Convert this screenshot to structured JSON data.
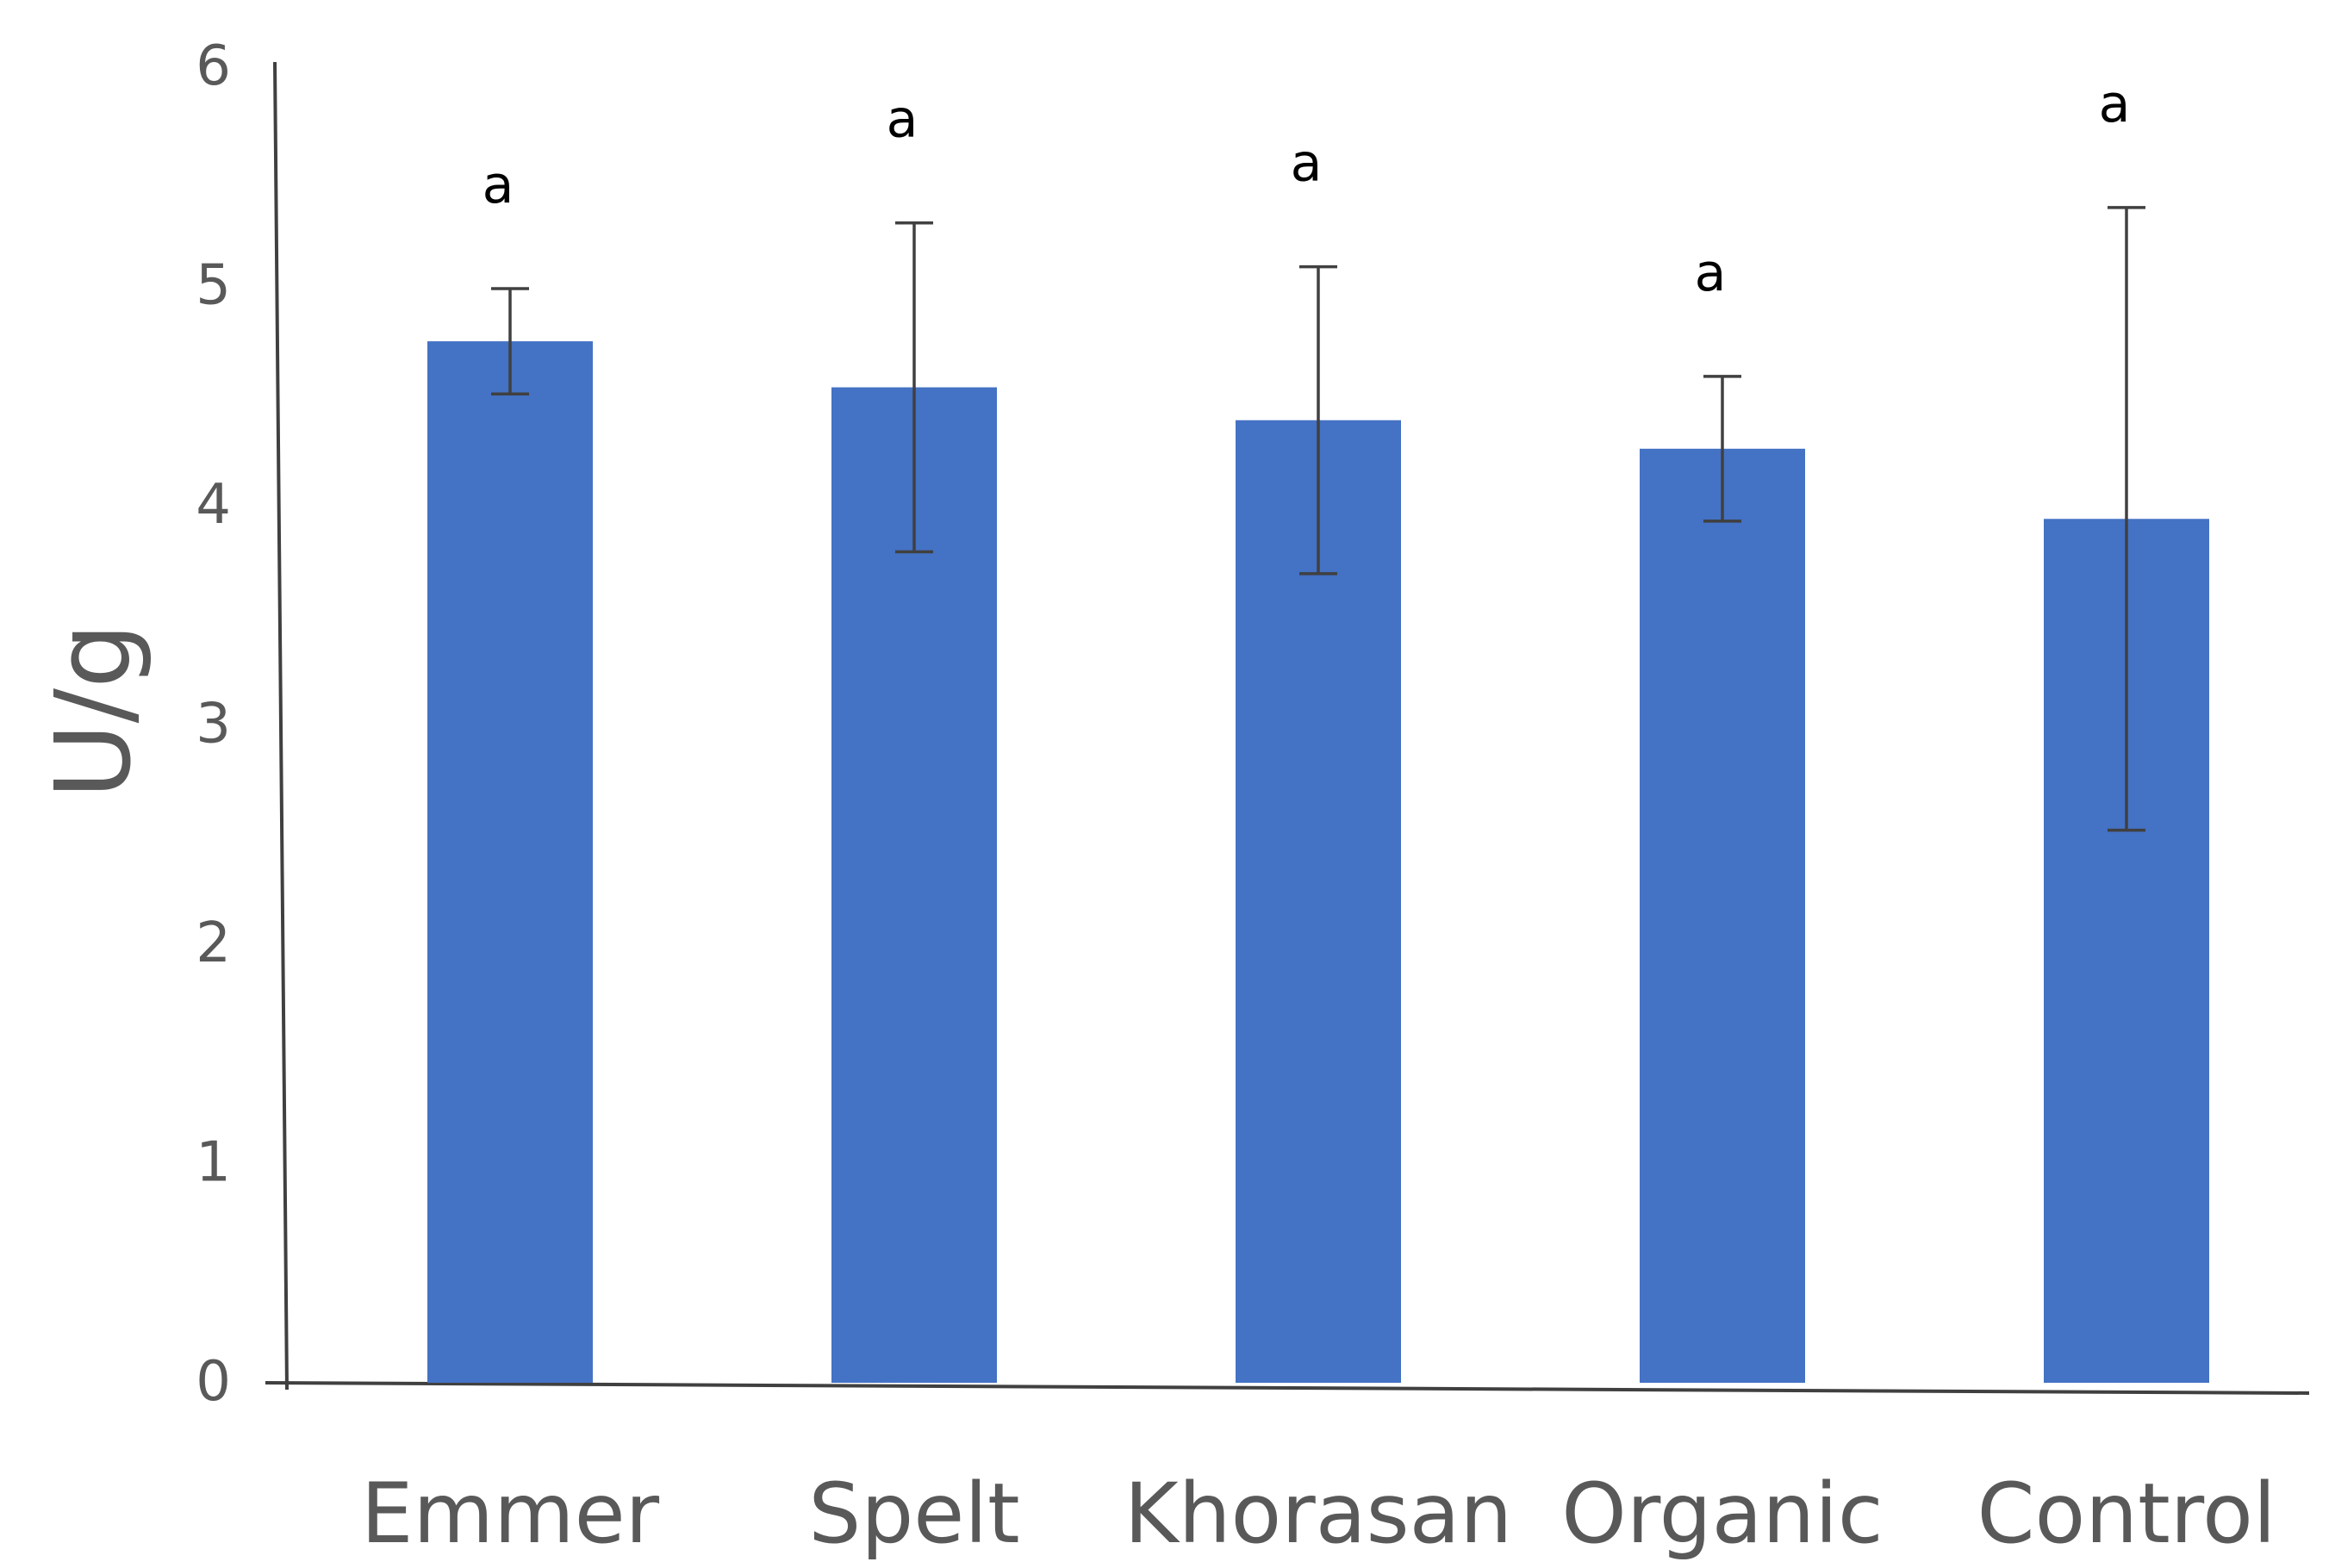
{
  "chart_data": {
    "type": "bar",
    "categories": [
      "Emmer",
      "Spelt",
      "Khorasan",
      "Organic",
      "Control"
    ],
    "values": [
      4.75,
      4.54,
      4.39,
      4.26,
      3.94
    ],
    "error": [
      0.24,
      0.75,
      0.7,
      0.33,
      1.42
    ],
    "significance": [
      "a",
      "a",
      "a",
      "a",
      "a"
    ],
    "ylabel": "U/g",
    "xlabel": "",
    "ylim": [
      0,
      6
    ],
    "yticks": [
      "0",
      "1",
      "2",
      "3",
      "4",
      "5",
      "6"
    ],
    "grid": false,
    "bar_color": "#4472C4",
    "axis_color": "#404040",
    "error_color": "#404040"
  }
}
